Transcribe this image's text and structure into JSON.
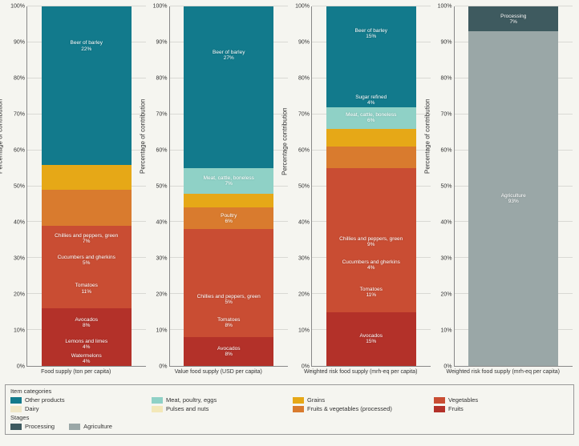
{
  "chart": {
    "background": "#f5f5f0",
    "grid_color": "#d9d9d4",
    "axis_color": "#888888",
    "tick_fontsize": 7,
    "label_fontsize": 8,
    "seg_fontsize": 6.5,
    "ylim": [
      0,
      100
    ],
    "ytick_step": 10
  },
  "panels": [
    {
      "ylabel": "Percentage of contribution",
      "xlabel": "Food supply (ton per capita)",
      "segments": [
        {
          "label": "Watermelons",
          "pct": 4,
          "color": "#b33129"
        },
        {
          "label": "Lemons and limes",
          "pct": 4,
          "color": "#b33129"
        },
        {
          "label": "Avocados",
          "pct": 8,
          "color": "#b33129"
        },
        {
          "label": "Tomatoes",
          "pct": 11,
          "color": "#c94d33"
        },
        {
          "label": "Cucumbers and gherkins",
          "pct": 5,
          "color": "#c94d33"
        },
        {
          "label": "Chillies and peppers, green",
          "pct": 7,
          "color": "#c94d33"
        },
        {
          "label": "",
          "pct": 10,
          "color": "#d97b2e"
        },
        {
          "label": "",
          "pct": 3,
          "color": "#e6a817"
        },
        {
          "label": "",
          "pct": 4,
          "color": "#e6a817"
        },
        {
          "label": "",
          "pct": 22,
          "color": "#127a8c",
          "hidden_until": 22
        },
        {
          "label": "Beer of barley",
          "pct": 22,
          "color": "#127a8c"
        }
      ]
    },
    {
      "ylabel": "Percentage of contribution",
      "xlabel": "Value food supply (USD per capita)",
      "segments": [
        {
          "label": "Avocados",
          "pct": 8,
          "color": "#b33129"
        },
        {
          "label": "Tomatoes",
          "pct": 8,
          "color": "#c94d33"
        },
        {
          "label": "Chillies and peppers, green",
          "pct": 5,
          "color": "#c94d33"
        },
        {
          "label": "",
          "pct": 17,
          "color": "#c94d33"
        },
        {
          "label": "Poultry",
          "pct": 6,
          "color": "#d97b2e"
        },
        {
          "label": "",
          "pct": 4,
          "color": "#e6a817"
        },
        {
          "label": "Meat, cattle, boneless",
          "pct": 7,
          "color": "#8fd1c6"
        },
        {
          "label": "",
          "pct": 18,
          "color": "#127a8c"
        },
        {
          "label": "Beer of barley",
          "pct": 27,
          "color": "#127a8c"
        }
      ]
    },
    {
      "ylabel": "Percentage contribution",
      "xlabel": "Weighted risk food supply (mrh-eq per capita)",
      "segments": [
        {
          "label": "Avocados",
          "pct": 15,
          "color": "#b33129"
        },
        {
          "label": "Tomatoes",
          "pct": 11,
          "color": "#c94d33"
        },
        {
          "label": "Cucumbers and gherkins",
          "pct": 4,
          "color": "#c94d33"
        },
        {
          "label": "Chillies and peppers, green",
          "pct": 9,
          "color": "#c94d33"
        },
        {
          "label": "",
          "pct": 16,
          "color": "#c94d33"
        },
        {
          "label": "",
          "pct": 6,
          "color": "#d97b2e"
        },
        {
          "label": "",
          "pct": 5,
          "color": "#e6a817"
        },
        {
          "label": "Meat, cattle, boneless",
          "pct": 6,
          "color": "#8fd1c6"
        },
        {
          "label": "Sugar refined",
          "pct": 4,
          "color": "#127a8c"
        },
        {
          "label": "",
          "pct": 9,
          "color": "#127a8c"
        },
        {
          "label": "Beer of barley",
          "pct": 15,
          "color": "#127a8c"
        }
      ]
    },
    {
      "ylabel": "Percentage of contribution",
      "xlabel": "Weighted risk food supply (mrh-eq per capita)",
      "segments": [
        {
          "label": "Agriculture",
          "pct": 93,
          "color": "#9aa7a7"
        },
        {
          "label": "Processing",
          "pct": 7,
          "color": "#3e5a5f"
        }
      ]
    }
  ],
  "legend1": {
    "title": "Item categories",
    "items": [
      {
        "label": "Other products",
        "color": "#127a8c"
      },
      {
        "label": "Meat, poultry, eggs",
        "color": "#8fd1c6"
      },
      {
        "label": "Grains",
        "color": "#e6a817"
      },
      {
        "label": "Vegetables",
        "color": "#c94d33"
      },
      {
        "label": "Dairy",
        "color": "#efe7c7"
      },
      {
        "label": "Pulses and nuts",
        "color": "#f3e8b8"
      },
      {
        "label": "Fruits & vegetables (processed)",
        "color": "#d97b2e"
      },
      {
        "label": "Fruits",
        "color": "#b33129"
      }
    ]
  },
  "legend2": {
    "title": "Stages",
    "items": [
      {
        "label": "Processing",
        "color": "#3e5a5f"
      },
      {
        "label": "Agriculture",
        "color": "#9aa7a7"
      }
    ]
  }
}
